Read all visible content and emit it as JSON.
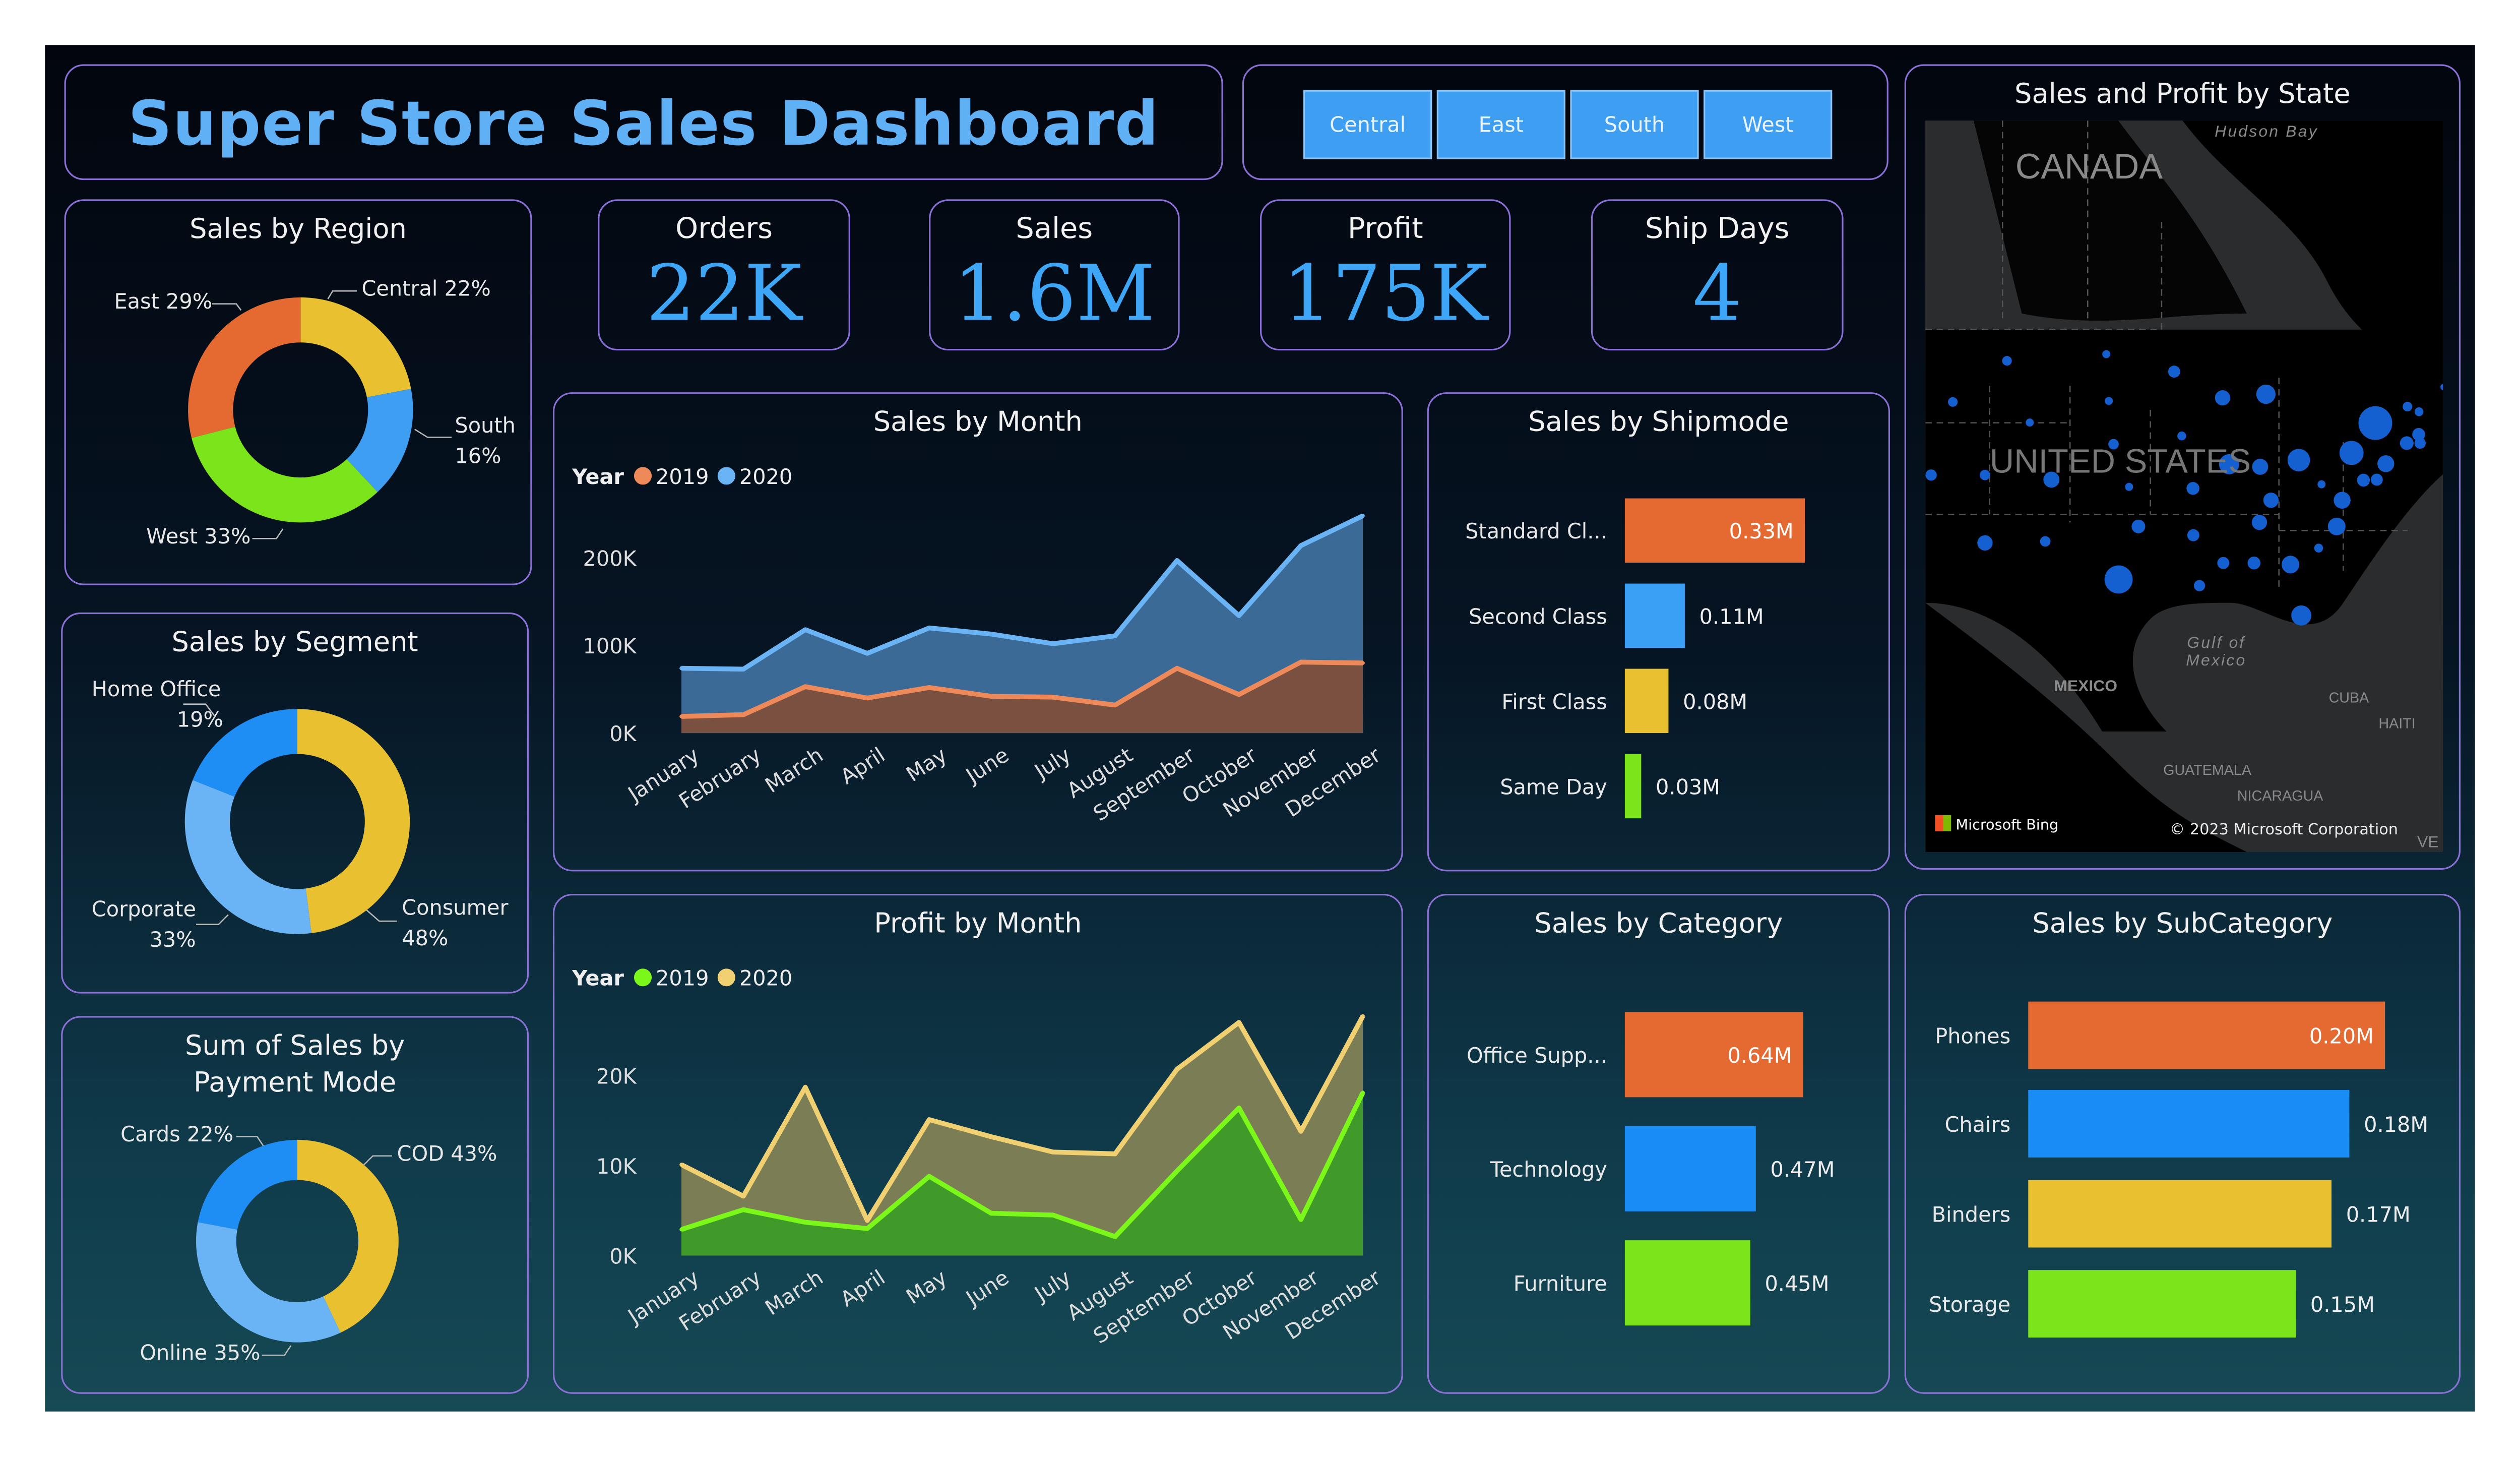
{
  "title": "Super Store Sales Dashboard",
  "region_slicer": [
    "Central",
    "East",
    "South",
    "West"
  ],
  "kpis": [
    {
      "label": "Orders",
      "value": "22K"
    },
    {
      "label": "Sales",
      "value": "1.6M"
    },
    {
      "label": "Profit",
      "value": "175K"
    },
    {
      "label": "Ship Days",
      "value": "4"
    }
  ],
  "map": {
    "title": "Sales and Profit by State",
    "labels": {
      "canada": "CANADA",
      "hudson": "Hudson Bay",
      "us": "UNITED STATES",
      "gulf": "Gulf of Mexico",
      "mexico": "MEXICO",
      "cuba": "CUBA",
      "haiti": "HAITI",
      "guatemala": "GUATEMALA",
      "nicaragua": "NICARAGUA",
      "ve": "VE"
    },
    "brand": "Microsoft Bing",
    "copyright": "© 2023 Microsoft Corporation",
    "bubble_color": "#1560d0"
  },
  "chart_data": [
    {
      "type": "pie",
      "title": "Sales by Region",
      "donut": true,
      "slices": [
        {
          "label": "Central",
          "value": 22,
          "display": "Central 22%",
          "color": "#e8c030"
        },
        {
          "label": "South",
          "value": 16,
          "display": "South 16%",
          "color": "#3d9ef2"
        },
        {
          "label": "West",
          "value": 33,
          "display": "West 33%",
          "color": "#7be41a"
        },
        {
          "label": "East",
          "value": 29,
          "display": "East 29%",
          "color": "#e46a32"
        }
      ]
    },
    {
      "type": "pie",
      "title": "Sales by Segment",
      "donut": true,
      "slices": [
        {
          "label": "Consumer",
          "value": 48,
          "display": "48%",
          "color": "#e8c030"
        },
        {
          "label": "Corporate",
          "value": 33,
          "display": "33%",
          "color": "#6ab4f5"
        },
        {
          "label": "Home Office",
          "value": 19,
          "display": "19%",
          "color": "#1e8ef5"
        }
      ]
    },
    {
      "type": "pie",
      "title": "Sum of Sales by Payment Mode",
      "donut": true,
      "slices": [
        {
          "label": "COD",
          "value": 43,
          "display": "COD 43%",
          "color": "#e8c030"
        },
        {
          "label": "Online",
          "value": 35,
          "display": "Online 35%",
          "color": "#6ab4f5"
        },
        {
          "label": "Cards",
          "value": 22,
          "display": "Cards 22%",
          "color": "#1e8ef5"
        }
      ]
    },
    {
      "type": "area",
      "title": "Sales by Month",
      "legend_title": "Year",
      "legend": "top-left",
      "categories": [
        "January",
        "February",
        "March",
        "April",
        "May",
        "June",
        "July",
        "August",
        "September",
        "October",
        "November",
        "December"
      ],
      "yticks": [
        "0K",
        "100K",
        "200K"
      ],
      "ylim": [
        0,
        250000
      ],
      "series": [
        {
          "name": "2019",
          "color": "#ee8a5a",
          "fill": "#7a5040",
          "values": [
            19000,
            21000,
            53000,
            40000,
            52000,
            42000,
            41000,
            32000,
            74000,
            44000,
            81000,
            80000
          ]
        },
        {
          "name": "2020",
          "color": "#6ab4f5",
          "fill": "#3b6a96",
          "values": [
            74000,
            73000,
            118000,
            91000,
            120000,
            113000,
            102000,
            111000,
            197000,
            134000,
            214000,
            248000
          ]
        }
      ]
    },
    {
      "type": "area",
      "title": "Profit by Month",
      "legend_title": "Year",
      "legend": "top-left",
      "categories": [
        "January",
        "February",
        "March",
        "April",
        "May",
        "June",
        "July",
        "August",
        "September",
        "October",
        "November",
        "December"
      ],
      "yticks": [
        "0K",
        "10K",
        "20K"
      ],
      "ylim": [
        0,
        27000
      ],
      "series": [
        {
          "name": "2019",
          "color": "#7cf71a",
          "fill": "#3f9a2a",
          "values": [
            2900,
            5100,
            3700,
            3000,
            8800,
            4700,
            4500,
            2100,
            9400,
            16400,
            4000,
            18100
          ]
        },
        {
          "name": "2020",
          "color": "#f0d070",
          "fill": "#7b7d55",
          "values": [
            10100,
            6600,
            18700,
            3900,
            15100,
            13200,
            11500,
            11300,
            20700,
            25900,
            13800,
            26600
          ]
        }
      ]
    },
    {
      "type": "bar",
      "title": "Sales by Shipmode",
      "orientation": "horizontal",
      "categories": [
        "Standard Cl...",
        "Second Class",
        "First Class",
        "Same Day"
      ],
      "values": [
        0.33,
        0.11,
        0.08,
        0.03
      ],
      "labels": [
        "0.33M",
        "0.11M",
        "0.08M",
        "0.03M"
      ],
      "colors": [
        "#e46a32",
        "#3aa0f5",
        "#e8c030",
        "#7be41a"
      ]
    },
    {
      "type": "bar",
      "title": "Sales by Category",
      "orientation": "horizontal",
      "categories": [
        "Office Supp...",
        "Technology",
        "Furniture"
      ],
      "values": [
        0.64,
        0.47,
        0.45
      ],
      "labels": [
        "0.64M",
        "0.47M",
        "0.45M"
      ],
      "colors": [
        "#e46a32",
        "#1a8cf5",
        "#7be41a"
      ]
    },
    {
      "type": "bar",
      "title": "Sales by SubCategory",
      "orientation": "horizontal",
      "categories": [
        "Phones",
        "Chairs",
        "Binders",
        "Storage"
      ],
      "values": [
        0.2,
        0.18,
        0.17,
        0.15
      ],
      "labels": [
        "0.20M",
        "0.18M",
        "0.17M",
        "0.15M"
      ],
      "colors": [
        "#e46a32",
        "#1a8cf5",
        "#e8c030",
        "#7be41a"
      ]
    }
  ]
}
